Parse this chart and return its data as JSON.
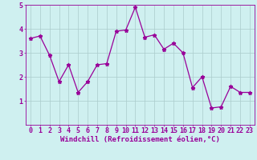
{
  "x": [
    0,
    1,
    2,
    3,
    4,
    5,
    6,
    7,
    8,
    9,
    10,
    11,
    12,
    13,
    14,
    15,
    16,
    17,
    18,
    19,
    20,
    21,
    22,
    23
  ],
  "y": [
    3.6,
    3.7,
    2.9,
    1.8,
    2.5,
    1.35,
    1.8,
    2.5,
    2.55,
    3.9,
    3.95,
    4.9,
    3.65,
    3.75,
    3.15,
    3.4,
    3.0,
    1.55,
    2.0,
    0.7,
    0.75,
    1.6,
    1.35,
    1.35
  ],
  "line_color": "#990099",
  "marker": "*",
  "markersize": 3.5,
  "linewidth": 0.9,
  "xlabel": "Windchill (Refroidissement éolien,°C)",
  "ylabel": "",
  "xlim": [
    -0.5,
    23.5
  ],
  "ylim": [
    0,
    5
  ],
  "yticks": [
    1,
    2,
    3,
    4,
    5
  ],
  "xticks": [
    0,
    1,
    2,
    3,
    4,
    5,
    6,
    7,
    8,
    9,
    10,
    11,
    12,
    13,
    14,
    15,
    16,
    17,
    18,
    19,
    20,
    21,
    22,
    23
  ],
  "bg_color": "#cff0f0",
  "grid_color": "#aacccc",
  "xlabel_fontsize": 6.5,
  "tick_fontsize": 6,
  "xlabel_color": "#990099",
  "tick_color": "#990099"
}
